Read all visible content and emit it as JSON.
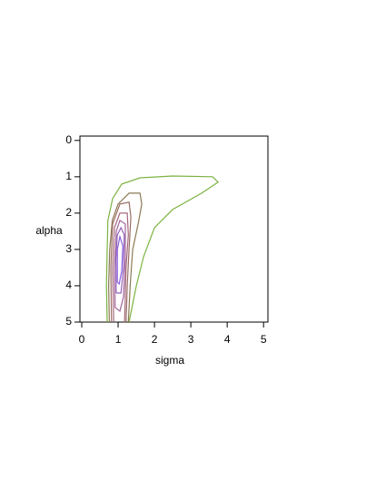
{
  "chart_data": {
    "type": "contour",
    "x_label": "sigma",
    "y_label": "alpha",
    "xlim": [
      -0.05,
      5.12
    ],
    "ylim": [
      5,
      -0.12
    ],
    "xticks": [
      0,
      1,
      2,
      3,
      4,
      5
    ],
    "yticks": [
      0,
      1,
      2,
      3,
      4,
      5
    ],
    "series": [
      {
        "color": "#7cb342",
        "x": [
          0.7,
          0.68,
          0.7,
          0.72,
          0.85,
          1.1,
          1.6,
          2.5,
          3.6,
          3.75,
          3.3,
          2.5,
          2.0,
          1.7,
          1.5,
          1.3
        ],
        "y": [
          5,
          4,
          3,
          2.2,
          1.6,
          1.2,
          1.03,
          0.98,
          1.0,
          1.15,
          1.45,
          1.9,
          2.4,
          3.2,
          4.0,
          5
        ]
      },
      {
        "color": "#8c7a55",
        "x": [
          0.76,
          0.74,
          0.77,
          0.84,
          1.0,
          1.3,
          1.6,
          1.65,
          1.55,
          1.4,
          1.33,
          1.28
        ],
        "y": [
          5,
          4,
          3,
          2.2,
          1.75,
          1.45,
          1.45,
          1.75,
          2.3,
          3.0,
          4.0,
          5
        ]
      },
      {
        "color": "#9a6e66",
        "x": [
          0.82,
          0.8,
          0.85,
          1.05,
          1.3,
          1.35,
          1.3,
          1.25,
          1.22
        ],
        "y": [
          5,
          3.5,
          2.3,
          1.75,
          1.7,
          2.1,
          3,
          4,
          5
        ]
      },
      {
        "color": "#a5687c",
        "x": [
          0.88,
          0.85,
          0.9,
          1.05,
          1.25,
          1.28,
          1.22,
          1.18
        ],
        "y": [
          5,
          3.5,
          2.4,
          2.0,
          2.0,
          2.6,
          3.5,
          5
        ]
      },
      {
        "color": "#a0649a",
        "x": [
          0.92,
          0.9,
          0.95,
          1.05,
          1.2,
          1.2,
          1.15,
          1.05,
          0.92
        ],
        "y": [
          4.6,
          3.5,
          2.5,
          2.2,
          2.3,
          3.2,
          4.3,
          4.7,
          4.6
        ]
      },
      {
        "color": "#9562bc",
        "x": [
          0.95,
          0.94,
          0.98,
          1.08,
          1.17,
          1.15,
          1.08,
          0.95
        ],
        "y": [
          4.2,
          3.3,
          2.6,
          2.4,
          2.6,
          3.5,
          4.2,
          4.2
        ]
      },
      {
        "color": "#8a5fe0",
        "x": [
          0.98,
          0.98,
          1.05,
          1.13,
          1.1,
          1.03,
          0.98
        ],
        "y": [
          3.9,
          3.0,
          2.65,
          2.9,
          3.6,
          3.95,
          3.9
        ]
      }
    ]
  }
}
